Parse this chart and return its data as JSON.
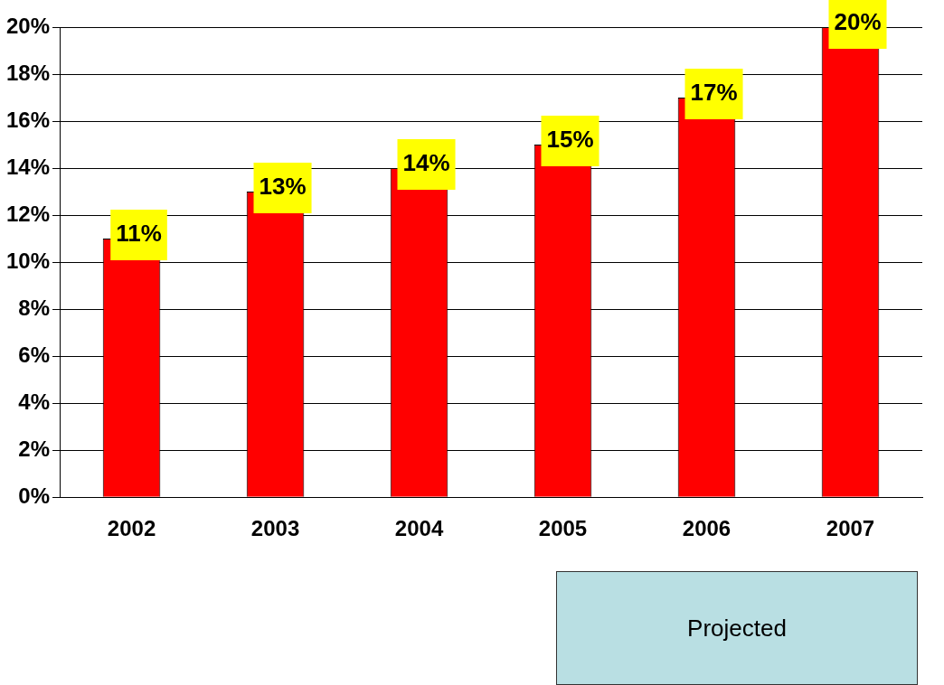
{
  "chart_data": {
    "type": "bar",
    "categories": [
      "2002",
      "2003",
      "2004",
      "2005",
      "2006",
      "2007"
    ],
    "values": [
      11,
      13,
      14,
      15,
      17,
      20
    ],
    "value_labels": [
      "11%",
      "13%",
      "14%",
      "15%",
      "17%",
      "20%"
    ],
    "color": "#ff0000",
    "ylim": [
      0,
      20
    ],
    "yticks": [
      {
        "value": 0,
        "label": "0%"
      },
      {
        "value": 2,
        "label": "2%"
      },
      {
        "value": 4,
        "label": "4%"
      },
      {
        "value": 6,
        "label": "6%"
      },
      {
        "value": 8,
        "label": "8%"
      },
      {
        "value": 10,
        "label": "10%"
      },
      {
        "value": 12,
        "label": "12%"
      },
      {
        "value": 14,
        "label": "14%"
      },
      {
        "value": 16,
        "label": "16%"
      },
      {
        "value": 18,
        "label": "18%"
      },
      {
        "value": 20,
        "label": "20%"
      }
    ],
    "grid": "y",
    "annotations": [
      "Projected"
    ]
  }
}
